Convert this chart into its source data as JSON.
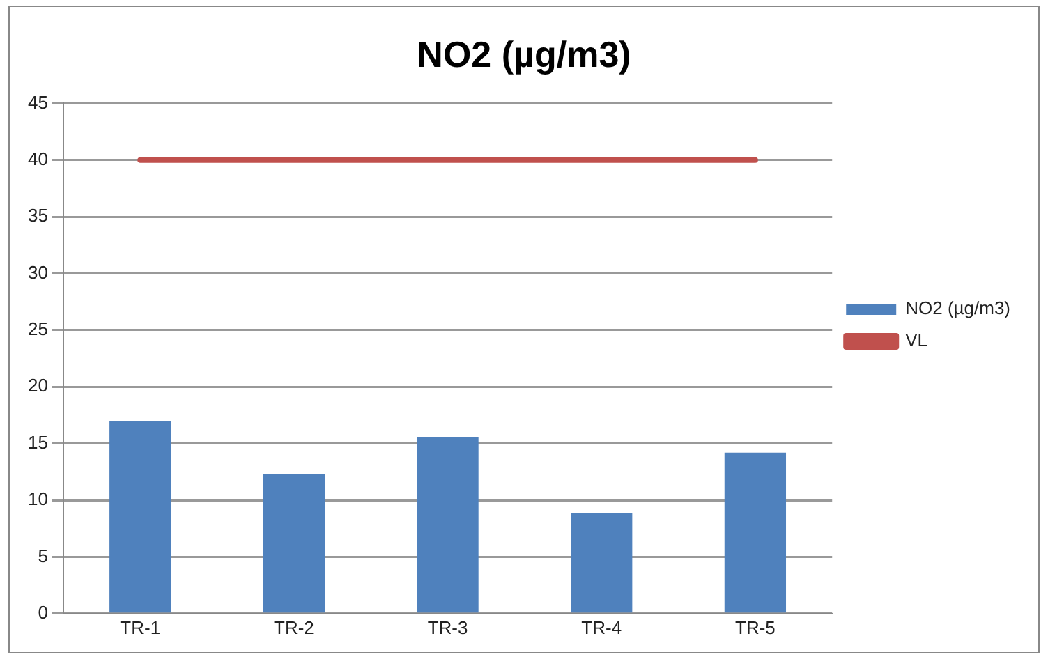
{
  "chart_data": {
    "type": "bar",
    "title": "NO2 (µg/m3)",
    "categories": [
      "TR-1",
      "TR-2",
      "TR-3",
      "TR-4",
      "TR-5"
    ],
    "series": [
      {
        "name": "NO2 (µg/m3)",
        "color": "#4f81bd",
        "values": [
          17,
          12.3,
          15.6,
          8.9,
          14.2
        ]
      },
      {
        "name": "VL",
        "type": "line",
        "color": "#c0504d",
        "values": [
          40,
          40,
          40,
          40,
          40
        ]
      }
    ],
    "ylim": [
      0,
      45
    ],
    "yticks": [
      0,
      5,
      10,
      15,
      20,
      25,
      30,
      35,
      40,
      45
    ],
    "grid": "y",
    "legend": "right",
    "marker": "none"
  }
}
